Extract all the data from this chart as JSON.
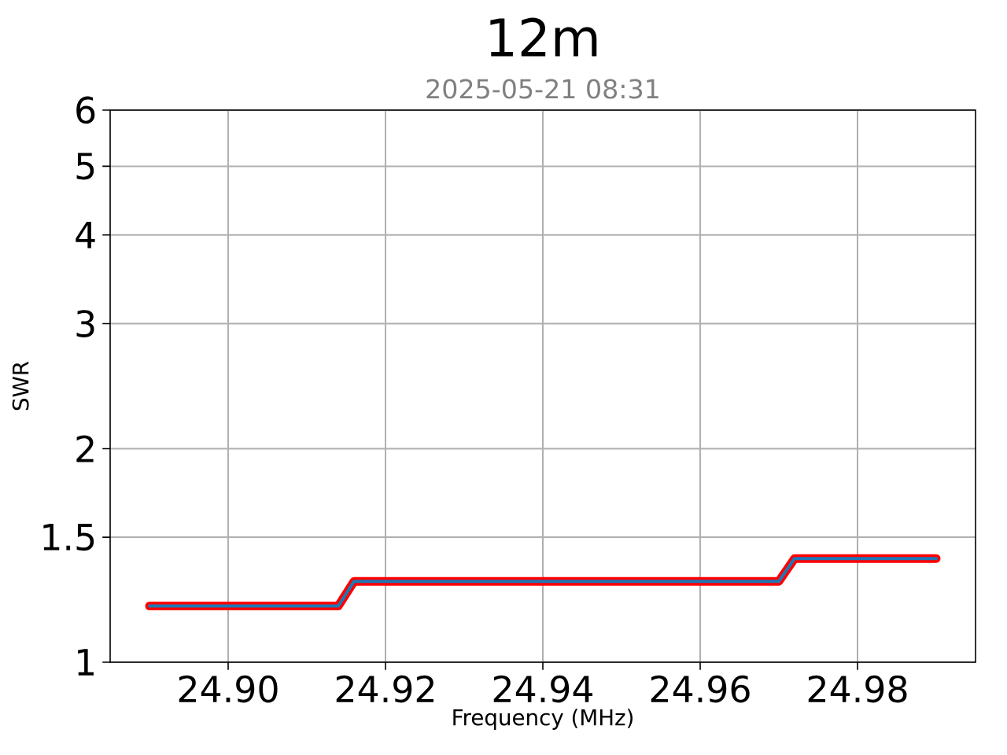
{
  "chart_data": {
    "type": "line",
    "title": "12m",
    "subtitle": "2025-05-21 08:31",
    "xlabel": "Frequency (MHz)",
    "ylabel": "SWR",
    "x": [
      24.89,
      24.914,
      24.916,
      24.97,
      24.972,
      24.99
    ],
    "series": [
      {
        "color": "#ff0000",
        "values": [
          1.2,
          1.2,
          1.3,
          1.3,
          1.4,
          1.4
        ]
      },
      {
        "color": "#1f77b4",
        "values": [
          1.2,
          1.2,
          1.3,
          1.3,
          1.4,
          1.4
        ]
      }
    ],
    "xlim": [
      24.885,
      24.995
    ],
    "ylim": [
      1,
      6
    ],
    "xticks": [
      {
        "value": 24.9,
        "label": "24.90"
      },
      {
        "value": 24.92,
        "label": "24.92"
      },
      {
        "value": 24.94,
        "label": "24.94"
      },
      {
        "value": 24.96,
        "label": "24.96"
      },
      {
        "value": 24.98,
        "label": "24.98"
      }
    ],
    "yticks": [
      1,
      1.5,
      2,
      3,
      4,
      5,
      6
    ],
    "log": true,
    "grid": true
  }
}
